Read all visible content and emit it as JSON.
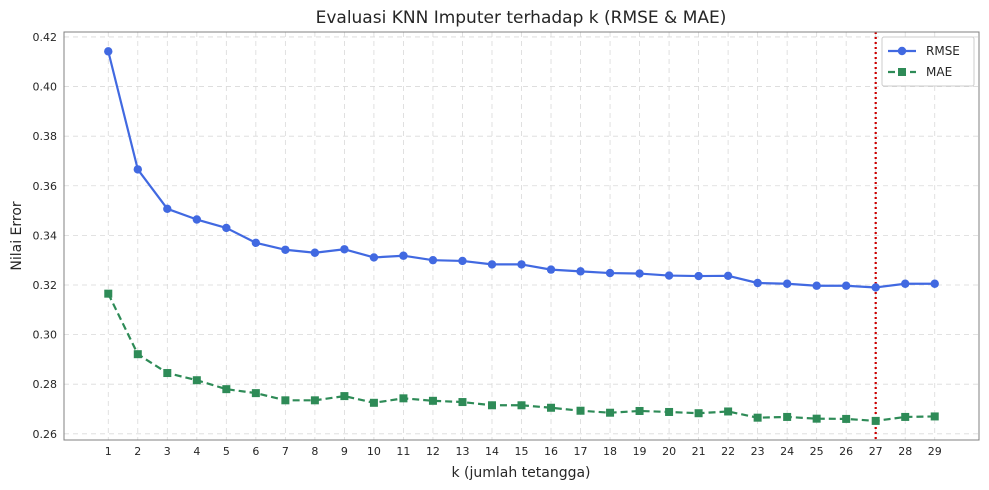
{
  "chart_data": {
    "type": "line",
    "title": "Evaluasi KNN Imputer terhadap k (RMSE & MAE)",
    "xlabel": "k (jumlah tetangga)",
    "ylabel": "Nilai Error",
    "x": [
      1,
      2,
      3,
      4,
      5,
      6,
      7,
      8,
      9,
      10,
      11,
      12,
      13,
      14,
      15,
      16,
      17,
      18,
      19,
      20,
      21,
      22,
      23,
      24,
      25,
      26,
      27,
      28,
      29
    ],
    "xlim": [
      -0.5,
      30.5
    ],
    "ylim": [
      0.2575,
      0.422
    ],
    "yticks": [
      "0.26",
      "0.28",
      "0.30",
      "0.32",
      "0.34",
      "0.36",
      "0.38",
      "0.40",
      "0.42"
    ],
    "grid": true,
    "legend_position": "top-right",
    "series": [
      {
        "name": "RMSE",
        "color": "#4169E1",
        "line_style": "solid",
        "marker": "circle",
        "values": [
          0.4142,
          0.3666,
          0.3507,
          0.3464,
          0.343,
          0.337,
          0.3342,
          0.333,
          0.3344,
          0.3311,
          0.3318,
          0.33,
          0.3297,
          0.3283,
          0.3283,
          0.3262,
          0.3255,
          0.3248,
          0.3246,
          0.3238,
          0.3236,
          0.3237,
          0.3208,
          0.3205,
          0.3197,
          0.3197,
          0.319,
          0.3205,
          0.3205
        ]
      },
      {
        "name": "MAE",
        "color": "#2E8B57",
        "line_style": "dashed",
        "marker": "square",
        "values": [
          0.3165,
          0.2921,
          0.2845,
          0.2816,
          0.278,
          0.2764,
          0.2735,
          0.2735,
          0.2752,
          0.2725,
          0.2743,
          0.2733,
          0.2728,
          0.2715,
          0.2715,
          0.2705,
          0.2693,
          0.2685,
          0.2692,
          0.2688,
          0.2683,
          0.269,
          0.2665,
          0.2668,
          0.2661,
          0.266,
          0.2652,
          0.2668,
          0.267
        ]
      }
    ],
    "vline": {
      "x": 27,
      "color": "#CC0000",
      "style": "dotted"
    }
  }
}
